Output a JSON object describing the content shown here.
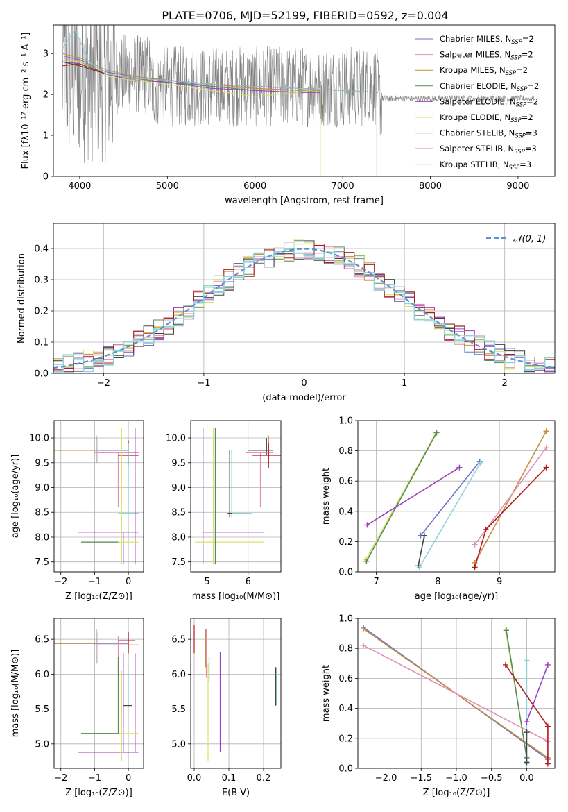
{
  "title": "PLATE=0706, MJD=52199, FIBERID=0592, z=0.004",
  "colors": {
    "grey": "#808080",
    "chabrier_miles": "#6a73c9",
    "salpeter_miles": "#e48fb6",
    "kroupa_miles": "#c88c3a",
    "chabrier_elodie": "#5a8a5a",
    "salpeter_elodie": "#9b3fbf",
    "kroupa_elodie": "#d8e26a",
    "chabrier_stelib": "#444444",
    "salpeter_stelib": "#b21a1a",
    "kroupa_stelib": "#8fd3d8",
    "normal_curve": "#5b8fd6",
    "grid": "#b0b0b0"
  },
  "chart_data": [
    {
      "id": "spectrum",
      "type": "line",
      "title": "PLATE=0706, MJD=52199, FIBERID=0592, z=0.004",
      "xlabel": "wavelength [Angstrom, rest frame]",
      "ylabel": "Flux [fλ10⁻¹⁷ erg cm⁻² s⁻¹ A⁻¹]",
      "xlim": [
        3700,
        9420
      ],
      "ylim": [
        0,
        3.7
      ],
      "xticks": [
        4000,
        5000,
        6000,
        7000,
        8000,
        9000
      ],
      "yticks": [
        0,
        1,
        2,
        3
      ],
      "grid": false,
      "legend_position": "upper-right",
      "series": [
        {
          "name": "Chabrier MILES, Nₛₛₚ=2",
          "label_main": "Chabrier MILES, N",
          "label_sub": "SSP",
          "label_tail": "=2",
          "color_key": "chabrier_miles",
          "x": [
            3800,
            4000,
            4300,
            4600,
            5000,
            5500,
            6000,
            6500,
            6750
          ],
          "y": [
            2.95,
            2.85,
            2.55,
            2.45,
            2.35,
            2.2,
            2.15,
            2.1,
            2.1
          ]
        },
        {
          "name": "Salpeter MILES, Nₛₛₚ=2",
          "label_main": "Salpeter MILES, N",
          "label_sub": "SSP",
          "label_tail": "=2",
          "color_key": "salpeter_miles",
          "x": [
            3800,
            4000,
            4300,
            4600,
            5000,
            5500,
            6000,
            6500,
            6750
          ],
          "y": [
            2.9,
            2.8,
            2.5,
            2.4,
            2.3,
            2.2,
            2.15,
            2.1,
            2.1
          ]
        },
        {
          "name": "Kroupa MILES, Nₛₛₚ=2",
          "label_main": "Kroupa MILES, N",
          "label_sub": "SSP",
          "label_tail": "=2",
          "color_key": "kroupa_miles",
          "x": [
            3800,
            4000,
            4300,
            4600,
            5000,
            5500,
            6000,
            6500,
            6750
          ],
          "y": [
            3.0,
            2.9,
            2.6,
            2.45,
            2.35,
            2.25,
            2.15,
            2.1,
            2.1
          ]
        },
        {
          "name": "Chabrier ELODIE, Nₛₛₚ=2",
          "label_main": "Chabrier ELODIE, N",
          "label_sub": "SSP",
          "label_tail": "=2",
          "color_key": "chabrier_elodie",
          "x": [
            3800,
            4000,
            4300,
            4600,
            5000,
            5500,
            6000,
            6500,
            6750
          ],
          "y": [
            2.85,
            2.8,
            2.5,
            2.4,
            2.3,
            2.2,
            2.1,
            2.05,
            2.05
          ]
        },
        {
          "name": "Salpeter ELODIE, Nₛₛₚ=2",
          "label_main": "Salpeter ELODIE, N",
          "label_sub": "SSP",
          "label_tail": "=2",
          "color_key": "salpeter_elodie",
          "x": [
            3800,
            4000,
            4300,
            4600,
            5000,
            5500,
            6000,
            6500,
            6750
          ],
          "y": [
            2.8,
            2.75,
            2.5,
            2.35,
            2.3,
            2.15,
            2.1,
            2.05,
            2.05
          ]
        },
        {
          "name": "Kroupa ELODIE, Nₛₛₚ=2",
          "label_main": "Kroupa ELODIE, N",
          "label_sub": "SSP",
          "label_tail": "=2",
          "color_key": "kroupa_elodie",
          "x": [
            3800,
            4000,
            4300,
            4600,
            5000,
            5500,
            6000,
            6500,
            6750
          ],
          "y": [
            2.85,
            2.8,
            2.45,
            2.35,
            2.25,
            2.1,
            1.95,
            2.05,
            2.15
          ]
        },
        {
          "name": "Chabrier STELIB, Nₛₛₚ=3",
          "label_main": "Chabrier STELIB, N",
          "label_sub": "SSP",
          "label_tail": "=3",
          "color_key": "chabrier_stelib",
          "x": [
            3800,
            4000,
            4300,
            4600,
            5000,
            5500,
            6000,
            6500,
            7000,
            7400
          ],
          "y": [
            2.8,
            2.7,
            2.5,
            2.4,
            2.35,
            2.25,
            2.2,
            2.15,
            2.1,
            2.05
          ]
        },
        {
          "name": "Salpeter STELIB, Nₛₛₚ=3",
          "label_main": "Salpeter STELIB, N",
          "label_sub": "SSP",
          "label_tail": "=3",
          "color_key": "salpeter_stelib",
          "x": [
            3800,
            4000,
            4300,
            4600,
            5000,
            5500,
            6000,
            6500,
            7000,
            7400
          ],
          "y": [
            2.7,
            2.75,
            2.5,
            2.4,
            2.35,
            2.25,
            2.2,
            2.15,
            2.1,
            2.05
          ]
        },
        {
          "name": "Kroupa STELIB, Nₛₛₚ=3",
          "label_main": "Kroupa STELIB, N",
          "label_sub": "SSP",
          "label_tail": "=3",
          "color_key": "kroupa_stelib",
          "x": [
            3800,
            3950,
            4100,
            4300,
            4600,
            5000,
            5500,
            6000,
            6500,
            7000,
            7400
          ],
          "y": [
            3.1,
            3.6,
            2.8,
            2.5,
            2.4,
            2.35,
            2.25,
            2.2,
            2.15,
            2.1,
            2.05
          ]
        },
        {
          "name": "data",
          "color_key": "grey",
          "x_range": [
            3800,
            9200
          ],
          "y_center": [
            2.5,
            2.0
          ],
          "noisy_region_end": 7400
        }
      ]
    },
    {
      "id": "residuals",
      "type": "line",
      "xlabel": "(data-model)/error",
      "ylabel": "Normed distribution",
      "xlim": [
        -2.5,
        2.5
      ],
      "ylim": [
        0,
        0.48
      ],
      "xticks": [
        -2,
        -1,
        0,
        1,
        2
      ],
      "yticks": [
        0.0,
        0.1,
        0.2,
        0.3,
        0.4
      ],
      "grid": true,
      "legend_position": "upper-right",
      "legend_label": "𝒩(0, 1)",
      "bin_width": 0.1,
      "note": "step histograms of normalized residuals for nine model fits, overlaid with a standard normal curve"
    },
    {
      "id": "age-vs-z",
      "type": "scatter",
      "xlabel": "Z [log₁₀(Z/Z⊙)]",
      "ylabel": "age  [log₁₀(age/yr)]",
      "xlim": [
        -2.2,
        0.45
      ],
      "ylim": [
        7.3,
        10.35
      ],
      "xticks": [
        -2,
        -1,
        0
      ],
      "yticks": [
        7.5,
        8.0,
        8.5,
        9.0,
        9.5,
        10.0
      ],
      "grid": true
    },
    {
      "id": "age-vs-mass",
      "type": "scatter",
      "xlabel": "mass [log₁₀(M/M⊙)]",
      "xlim": [
        4.6,
        6.8
      ],
      "ylim": [
        7.3,
        10.35
      ],
      "xticks": [
        5,
        6
      ],
      "yticks": [
        7.5,
        8.0,
        8.5,
        9.0,
        9.5,
        10.0
      ],
      "grid": true
    },
    {
      "id": "massweight-vs-age",
      "type": "line",
      "xlabel": "age  [log₁₀(age/yr)]",
      "ylabel": "mass weight",
      "xlim": [
        6.7,
        9.9
      ],
      "ylim": [
        0,
        1.0
      ],
      "xticks": [
        7,
        8,
        9
      ],
      "yticks": [
        0.0,
        0.2,
        0.4,
        0.6,
        0.8,
        1.0
      ],
      "grid": true,
      "series": [
        {
          "color_key": "kroupa_elodie",
          "x": [
            6.83,
            7.97
          ],
          "y": [
            0.08,
            0.92
          ]
        },
        {
          "color_key": "chabrier_elodie",
          "x": [
            6.84,
            7.98
          ],
          "y": [
            0.07,
            0.92
          ]
        },
        {
          "color_key": "salpeter_elodie",
          "x": [
            6.85,
            8.35
          ],
          "y": [
            0.31,
            0.69
          ]
        },
        {
          "color_key": "chabrier_miles",
          "x": [
            7.72,
            8.68
          ],
          "y": [
            0.24,
            0.73
          ]
        },
        {
          "color_key": "kroupa_stelib",
          "x": [
            7.7,
            8.69
          ],
          "y": [
            0.03,
            0.72
          ]
        },
        {
          "color_key": "chabrier_stelib",
          "x": [
            7.68,
            7.78
          ],
          "y": [
            0.04,
            0.24
          ]
        },
        {
          "color_key": "kroupa_miles",
          "x": [
            8.6,
            9.76
          ],
          "y": [
            0.06,
            0.93
          ]
        },
        {
          "color_key": "salpeter_miles",
          "x": [
            8.6,
            9.76
          ],
          "y": [
            0.18,
            0.82
          ]
        },
        {
          "color_key": "salpeter_stelib",
          "x": [
            8.6,
            8.78,
            9.76
          ],
          "y": [
            0.03,
            0.28,
            0.69
          ]
        }
      ]
    },
    {
      "id": "mass-vs-z",
      "type": "scatter",
      "xlabel": "Z [log₁₀(Z/Z⊙)]",
      "ylabel": "mass [log₁₀(M/M⊙)]",
      "xlim": [
        -2.2,
        0.45
      ],
      "ylim": [
        4.65,
        6.8
      ],
      "xticks": [
        -2,
        -1,
        0
      ],
      "yticks": [
        5.0,
        5.5,
        6.0,
        6.5
      ],
      "grid": true
    },
    {
      "id": "mass-vs-ebv",
      "type": "scatter",
      "xlabel": "E(B-V)",
      "xlim": [
        -0.01,
        0.25
      ],
      "ylim": [
        4.65,
        6.8
      ],
      "xticks": [
        0.0,
        0.1,
        0.2
      ],
      "yticks": [
        5.0,
        5.5,
        6.0,
        6.5
      ],
      "grid": true
    },
    {
      "id": "massweight-vs-z",
      "type": "line",
      "xlabel": "Z [log₁₀(Z/Z⊙)]",
      "ylabel": "mass weight",
      "xlim": [
        -2.4,
        0.4
      ],
      "ylim": [
        0,
        1.0
      ],
      "xticks": [
        -2.0,
        -1.5,
        -1.0,
        -0.5,
        0.0
      ],
      "yticks": [
        0.0,
        0.2,
        0.4,
        0.6,
        0.8,
        1.0
      ],
      "grid": true,
      "series": [
        {
          "color_key": "chabrier_miles",
          "x": [
            -2.32,
            0.3
          ],
          "y": [
            0.94,
            0.06
          ]
        },
        {
          "color_key": "kroupa_miles",
          "x": [
            -2.32,
            0.3
          ],
          "y": [
            0.93,
            0.07
          ]
        },
        {
          "color_key": "salpeter_miles",
          "x": [
            -2.32,
            0.3
          ],
          "y": [
            0.82,
            0.18
          ]
        },
        {
          "color_key": "kroupa_elodie",
          "x": [
            -0.3,
            0.0
          ],
          "y": [
            0.92,
            0.08
          ]
        },
        {
          "color_key": "chabrier_elodie",
          "x": [
            -0.29,
            0.0
          ],
          "y": [
            0.92,
            0.07
          ]
        },
        {
          "color_key": "kroupa_stelib",
          "x": [
            0.0,
            0.0
          ],
          "y": [
            0.72,
            0.03
          ]
        },
        {
          "color_key": "salpeter_elodie",
          "x": [
            0.0,
            0.3
          ],
          "y": [
            0.31,
            0.69
          ]
        },
        {
          "color_key": "salpeter_stelib",
          "x": [
            -0.3,
            0.3,
            0.3
          ],
          "y": [
            0.69,
            0.28,
            0.03
          ]
        },
        {
          "color_key": "chabrier_stelib",
          "x": [
            0.0,
            0.0
          ],
          "y": [
            0.24,
            0.04
          ]
        }
      ]
    }
  ]
}
